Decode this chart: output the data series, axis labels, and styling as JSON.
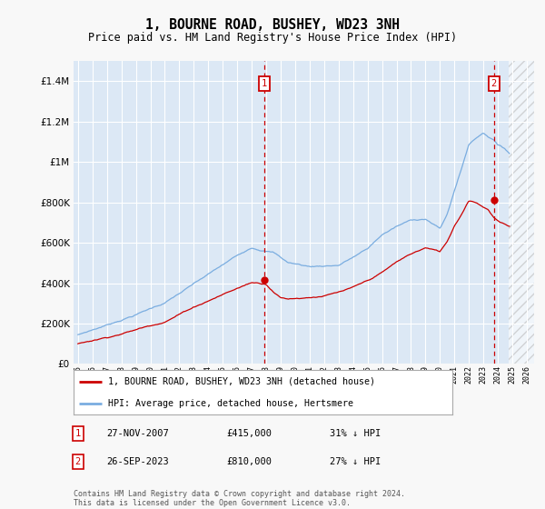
{
  "title": "1, BOURNE ROAD, BUSHEY, WD23 3NH",
  "subtitle": "Price paid vs. HM Land Registry's House Price Index (HPI)",
  "legend_line1": "1, BOURNE ROAD, BUSHEY, WD23 3NH (detached house)",
  "legend_line2": "HPI: Average price, detached house, Hertsmere",
  "annotation1_date": "27-NOV-2007",
  "annotation1_price": "£415,000",
  "annotation1_note": "31% ↓ HPI",
  "annotation2_date": "26-SEP-2023",
  "annotation2_price": "£810,000",
  "annotation2_note": "27% ↓ HPI",
  "footer": "Contains HM Land Registry data © Crown copyright and database right 2024.\nThis data is licensed under the Open Government Licence v3.0.",
  "hpi_color": "#7aade0",
  "price_color": "#cc0000",
  "annotation_color": "#cc0000",
  "background_plot": "#dce8f5",
  "background_fig": "#f8f8f8",
  "ylim": [
    0,
    1500000
  ],
  "yticks": [
    0,
    200000,
    400000,
    600000,
    800000,
    1000000,
    1200000,
    1400000
  ],
  "xlim_start": 1994.7,
  "xlim_end": 2026.5,
  "hatch_start": 2024.75,
  "sale1_x": 2007.88,
  "sale1_y": 415000,
  "sale2_x": 2023.72,
  "sale2_y": 810000
}
